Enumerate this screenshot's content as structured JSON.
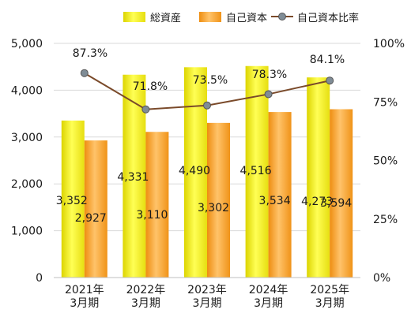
{
  "chart_data": {
    "type": "bar",
    "categories": [
      [
        "2021年",
        "3月期"
      ],
      [
        "2022年",
        "3月期"
      ],
      [
        "2023年",
        "3月期"
      ],
      [
        "2024年",
        "3月期"
      ],
      [
        "2025年",
        "3月期"
      ]
    ],
    "series": [
      {
        "name": "総資産",
        "kind": "bar",
        "axis": "left",
        "values": [
          3352,
          4331,
          4490,
          4516,
          4273
        ],
        "labels": [
          "3,352",
          "4,331",
          "4,490",
          "4,516",
          "4,273"
        ]
      },
      {
        "name": "自己資本",
        "kind": "bar",
        "axis": "left",
        "values": [
          2927,
          3110,
          3302,
          3534,
          3594
        ],
        "labels": [
          "2,927",
          "3,110",
          "3,302",
          "3,534",
          "3,594"
        ]
      },
      {
        "name": "自己資本比率",
        "kind": "line",
        "axis": "right",
        "values": [
          87.3,
          71.8,
          73.5,
          78.3,
          84.1
        ],
        "labels": [
          "87.3%",
          "71.8%",
          "73.5%",
          "78.3%",
          "84.1%"
        ]
      }
    ],
    "y_left": {
      "min": 0,
      "max": 5000,
      "ticks": [
        0,
        1000,
        2000,
        3000,
        4000,
        5000
      ],
      "tick_labels": [
        "0",
        "1,000",
        "2,000",
        "3,000",
        "4,000",
        "5,000"
      ]
    },
    "y_right": {
      "min": 0,
      "max": 100,
      "ticks": [
        0,
        25,
        50,
        75,
        100
      ],
      "tick_labels": [
        "0%",
        "25%",
        "50%",
        "75%",
        "100%"
      ]
    },
    "grid": true,
    "legend_position": "top-right",
    "colors": {
      "total_assets": "#f0ea1e",
      "equity": "#f39b1c",
      "line": "#7a4a2a",
      "marker": "#7f8c96"
    }
  }
}
